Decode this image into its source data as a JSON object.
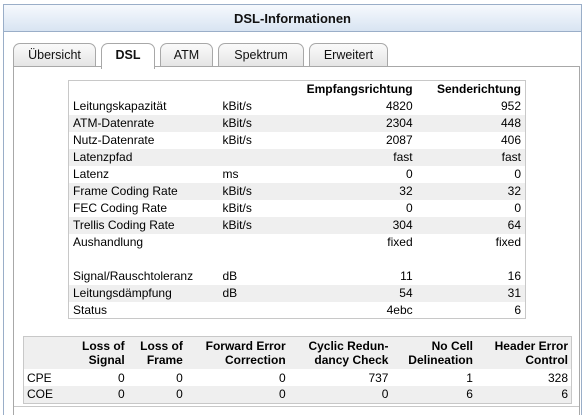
{
  "header": {
    "title": "DSL-Informationen"
  },
  "tabs": [
    "Übersicht",
    "DSL",
    "ATM",
    "Spektrum",
    "Erweitert"
  ],
  "active_tab": "DSL",
  "dsl_table": {
    "columns": [
      "Empfangsrichtung",
      "Senderichtung"
    ],
    "rows": [
      {
        "label": "Leitungskapazität",
        "unit": "kBit/s",
        "rx": "4820",
        "tx": "952"
      },
      {
        "label": "ATM-Datenrate",
        "unit": "kBit/s",
        "rx": "2304",
        "tx": "448"
      },
      {
        "label": "Nutz-Datenrate",
        "unit": "kBit/s",
        "rx": "2087",
        "tx": "406"
      },
      {
        "label": "Latenzpfad",
        "unit": "",
        "rx": "fast",
        "tx": "fast"
      },
      {
        "label": "Latenz",
        "unit": "ms",
        "rx": "0",
        "tx": "0"
      },
      {
        "label": "Frame Coding Rate",
        "unit": "kBit/s",
        "rx": "32",
        "tx": "32"
      },
      {
        "label": "FEC Coding Rate",
        "unit": "kBit/s",
        "rx": "0",
        "tx": "0"
      },
      {
        "label": "Trellis Coding Rate",
        "unit": "kBit/s",
        "rx": "304",
        "tx": "64"
      },
      {
        "label": "Aushandlung",
        "unit": "",
        "rx": "fixed",
        "tx": "fixed"
      }
    ],
    "rows2": [
      {
        "label": "Signal/Rauschtoleranz",
        "unit": "dB",
        "rx": "11",
        "tx": "16"
      },
      {
        "label": "Leitungsdämpfung",
        "unit": "dB",
        "rx": "54",
        "tx": "31"
      },
      {
        "label": "Status",
        "unit": "",
        "rx": "4ebc",
        "tx": "6"
      }
    ]
  },
  "error_table": {
    "headers": [
      [
        "Loss of",
        "Signal"
      ],
      [
        "Loss of",
        "Frame"
      ],
      [
        "Forward Error",
        "Correction"
      ],
      [
        "Cyclic Redun-",
        "dancy Check"
      ],
      [
        "No Cell",
        "Delineation"
      ],
      [
        "Header Error",
        "Control"
      ]
    ],
    "rows": [
      {
        "name": "CPE",
        "values": [
          "0",
          "0",
          "0",
          "737",
          "1",
          "328"
        ]
      },
      {
        "name": "COE",
        "values": [
          "0",
          "0",
          "0",
          "0",
          "6",
          "6"
        ]
      }
    ]
  }
}
